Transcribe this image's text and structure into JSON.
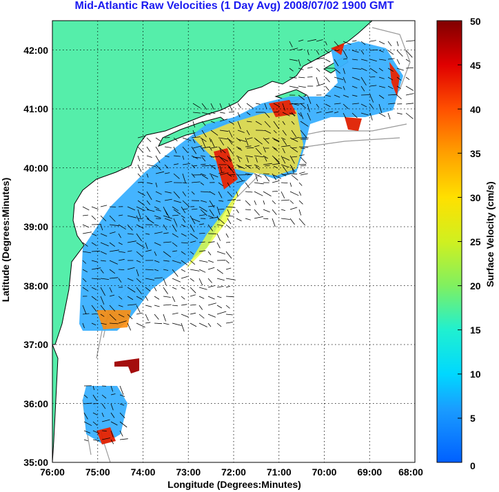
{
  "title": "Mid-Atlantic Raw Velocities (1 Day Avg) 2008/07/02 1900 GMT",
  "map": {
    "xlabel": "Longitude (Degrees:Minutes)",
    "ylabel": "Latitude (Degrees:Minutes)",
    "lon_ticks": [
      "76:00",
      "75:00",
      "74:00",
      "73:00",
      "72:00",
      "71:00",
      "70:00",
      "69:00",
      "68:00"
    ],
    "lat_ticks": [
      "35:00",
      "36:00",
      "37:00",
      "38:00",
      "39:00",
      "40:00",
      "41:00",
      "42:00"
    ],
    "lon_range": [
      -76,
      -68
    ],
    "lat_range": [
      35,
      42.5
    ],
    "land_color": "#55eeaa",
    "grid": "dotted",
    "bathymetry_contour_color": "#999999",
    "coastline_color": "#000000"
  },
  "colorbar": {
    "label": "Surface Velocity (cm/s)",
    "ticks": [
      "0",
      "5",
      "10",
      "15",
      "20",
      "25",
      "30",
      "35",
      "40",
      "45",
      "50"
    ],
    "range": [
      0,
      50
    ],
    "colormap": "jet"
  }
}
